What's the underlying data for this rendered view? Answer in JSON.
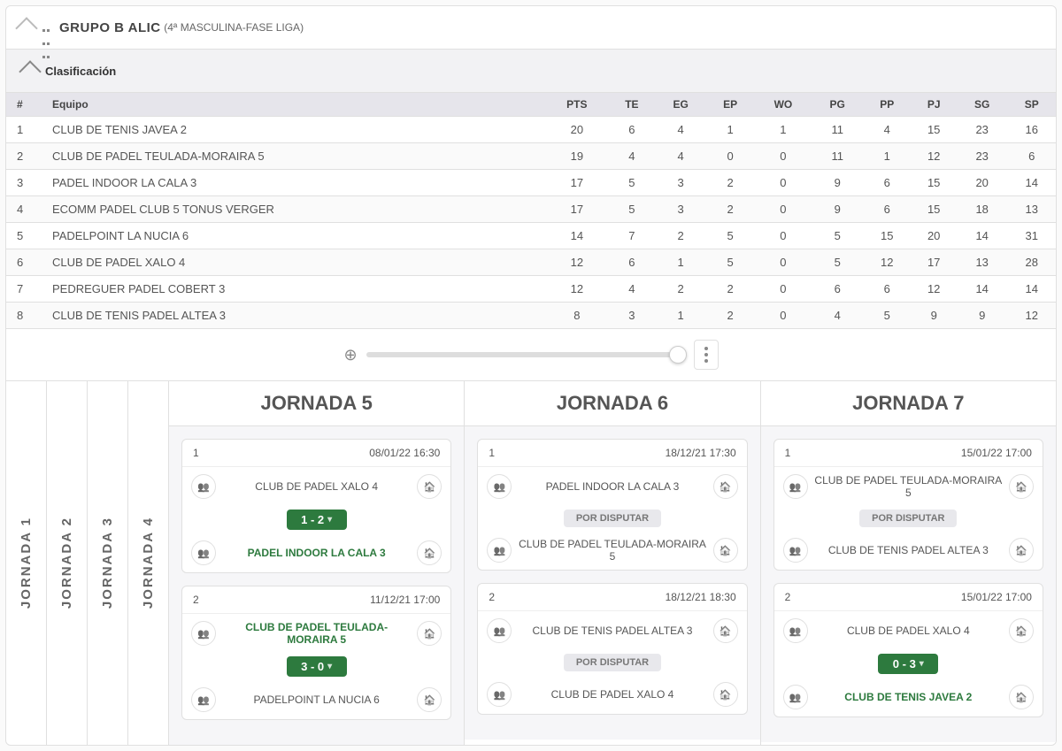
{
  "header": {
    "title_main": "GRUPO B ALIC",
    "title_sub": "(4ª MASCULINA-FASE LIGA)"
  },
  "classification": {
    "label": "Clasificación",
    "columns": [
      "#",
      "Equipo",
      "PTS",
      "TE",
      "EG",
      "EP",
      "WO",
      "PG",
      "PP",
      "PJ",
      "SG",
      "SP"
    ],
    "rows": [
      [
        "1",
        "CLUB DE TENIS JAVEA 2",
        "20",
        "6",
        "4",
        "1",
        "1",
        "11",
        "4",
        "15",
        "23",
        "16"
      ],
      [
        "2",
        "CLUB DE PADEL TEULADA-MORAIRA 5",
        "19",
        "4",
        "4",
        "0",
        "0",
        "11",
        "1",
        "12",
        "23",
        "6"
      ],
      [
        "3",
        "PADEL INDOOR LA CALA 3",
        "17",
        "5",
        "3",
        "2",
        "0",
        "9",
        "6",
        "15",
        "20",
        "14"
      ],
      [
        "4",
        "ECOMM PADEL CLUB 5 TONUS VERGER",
        "17",
        "5",
        "3",
        "2",
        "0",
        "9",
        "6",
        "15",
        "18",
        "13"
      ],
      [
        "5",
        "PADELPOINT LA NUCIA 6",
        "14",
        "7",
        "2",
        "5",
        "0",
        "5",
        "15",
        "20",
        "14",
        "31"
      ],
      [
        "6",
        "CLUB DE PADEL XALO 4",
        "12",
        "6",
        "1",
        "5",
        "0",
        "5",
        "12",
        "17",
        "13",
        "28"
      ],
      [
        "7",
        "PEDREGUER PADEL COBERT 3",
        "12",
        "4",
        "2",
        "2",
        "0",
        "6",
        "6",
        "12",
        "14",
        "14"
      ],
      [
        "8",
        "CLUB DE TENIS PADEL ALTEA 3",
        "8",
        "3",
        "1",
        "2",
        "0",
        "4",
        "5",
        "9",
        "9",
        "12"
      ]
    ]
  },
  "tabs": [
    "JORNADA 1",
    "JORNADA 2",
    "JORNADA 3",
    "JORNADA 4"
  ],
  "columns_open": [
    {
      "title": "JORNADA 5",
      "matches": [
        {
          "n": "1",
          "dt": "08/01/22 16:30",
          "home": "CLUB DE PADEL XALO 4",
          "away": "PADEL INDOOR LA CALA 3",
          "status": "score",
          "score": "1 - 2",
          "winner": "away"
        },
        {
          "n": "2",
          "dt": "11/12/21 17:00",
          "home": "CLUB DE PADEL TEULADA-MORAIRA 5",
          "away": "PADELPOINT LA NUCIA 6",
          "status": "score",
          "score": "3 - 0",
          "winner": "home"
        }
      ]
    },
    {
      "title": "JORNADA 6",
      "matches": [
        {
          "n": "1",
          "dt": "18/12/21 17:30",
          "home": "PADEL INDOOR LA CALA 3",
          "away": "CLUB DE PADEL TEULADA-MORAIRA 5",
          "status": "pending",
          "score": "",
          "winner": ""
        },
        {
          "n": "2",
          "dt": "18/12/21 18:30",
          "home": "CLUB DE TENIS PADEL ALTEA 3",
          "away": "CLUB DE PADEL XALO 4",
          "status": "pending",
          "score": "",
          "winner": ""
        }
      ]
    },
    {
      "title": "JORNADA 7",
      "matches": [
        {
          "n": "1",
          "dt": "15/01/22 17:00",
          "home": "CLUB DE PADEL TEULADA-MORAIRA 5",
          "away": "CLUB DE TENIS PADEL ALTEA 3",
          "status": "pending",
          "score": "",
          "winner": ""
        },
        {
          "n": "2",
          "dt": "15/01/22 17:00",
          "home": "CLUB DE PADEL XALO 4",
          "away": "CLUB DE TENIS JAVEA 2",
          "status": "score",
          "score": "0 - 3",
          "winner": "away"
        }
      ]
    }
  ],
  "labels": {
    "por_disputar": "POR DISPUTAR"
  },
  "colors": {
    "header_bg": "#e6e5eb",
    "green": "#2d7a3e",
    "pending_bg": "#e8e8ec"
  }
}
